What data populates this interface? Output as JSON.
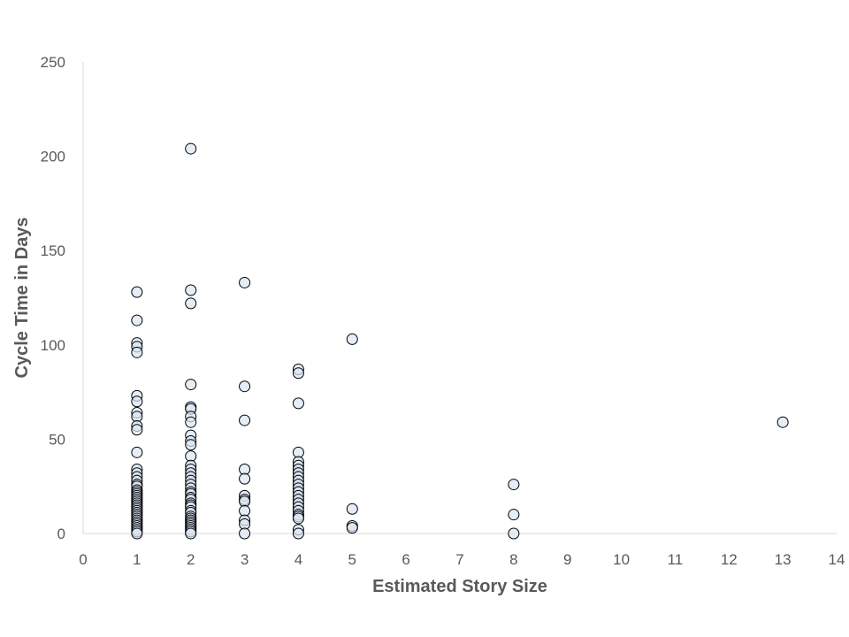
{
  "chart_data": {
    "type": "scatter",
    "title": "",
    "xlabel": "Estimated Story Size",
    "ylabel": "Cycle Time in Days",
    "xlim": [
      0,
      14
    ],
    "ylim": [
      0,
      250
    ],
    "xticks": [
      0,
      1,
      2,
      3,
      4,
      5,
      6,
      7,
      8,
      9,
      10,
      11,
      12,
      13,
      14
    ],
    "yticks": [
      0,
      50,
      100,
      150,
      200,
      250
    ],
    "grid": false,
    "legend": "none",
    "marker": {
      "fill": "#dae5f3",
      "stroke": "#000000"
    },
    "axis_color": "#d9d9d9",
    "text_color": "#595959",
    "series": [
      {
        "points": [
          [
            1,
            128
          ],
          [
            1,
            113
          ],
          [
            1,
            101
          ],
          [
            1,
            99
          ],
          [
            1,
            96
          ],
          [
            1,
            73
          ],
          [
            1,
            70
          ],
          [
            1,
            64
          ],
          [
            1,
            62
          ],
          [
            1,
            57
          ],
          [
            1,
            55
          ],
          [
            1,
            43
          ],
          [
            1,
            34
          ],
          [
            1,
            32
          ],
          [
            1,
            30
          ],
          [
            1,
            28
          ],
          [
            1,
            26
          ],
          [
            1,
            25
          ],
          [
            1,
            23
          ],
          [
            1,
            22
          ],
          [
            1,
            21
          ],
          [
            1,
            20
          ],
          [
            1,
            19
          ],
          [
            1,
            18
          ],
          [
            1,
            17
          ],
          [
            1,
            16
          ],
          [
            1,
            15
          ],
          [
            1,
            14
          ],
          [
            1,
            13
          ],
          [
            1,
            12
          ],
          [
            1,
            11
          ],
          [
            1,
            10
          ],
          [
            1,
            9
          ],
          [
            1,
            8
          ],
          [
            1,
            7
          ],
          [
            1,
            6
          ],
          [
            1,
            5
          ],
          [
            1,
            4
          ],
          [
            1,
            3
          ],
          [
            1,
            2
          ],
          [
            1,
            1
          ],
          [
            1,
            0
          ],
          [
            2,
            204
          ],
          [
            2,
            129
          ],
          [
            2,
            122
          ],
          [
            2,
            79
          ],
          [
            2,
            67
          ],
          [
            2,
            66
          ],
          [
            2,
            62
          ],
          [
            2,
            59
          ],
          [
            2,
            52
          ],
          [
            2,
            49
          ],
          [
            2,
            47
          ],
          [
            2,
            41
          ],
          [
            2,
            36
          ],
          [
            2,
            34
          ],
          [
            2,
            32
          ],
          [
            2,
            30
          ],
          [
            2,
            28
          ],
          [
            2,
            26
          ],
          [
            2,
            24
          ],
          [
            2,
            22
          ],
          [
            2,
            21
          ],
          [
            2,
            19
          ],
          [
            2,
            18
          ],
          [
            2,
            16
          ],
          [
            2,
            15
          ],
          [
            2,
            14
          ],
          [
            2,
            12
          ],
          [
            2,
            11
          ],
          [
            2,
            9
          ],
          [
            2,
            8
          ],
          [
            2,
            7
          ],
          [
            2,
            6
          ],
          [
            2,
            5
          ],
          [
            2,
            4
          ],
          [
            2,
            3
          ],
          [
            2,
            2
          ],
          [
            2,
            1
          ],
          [
            2,
            0
          ],
          [
            3,
            133
          ],
          [
            3,
            78
          ],
          [
            3,
            60
          ],
          [
            3,
            34
          ],
          [
            3,
            29
          ],
          [
            3,
            20
          ],
          [
            3,
            18
          ],
          [
            3,
            17
          ],
          [
            3,
            12
          ],
          [
            3,
            7
          ],
          [
            3,
            5
          ],
          [
            3,
            0
          ],
          [
            4,
            87
          ],
          [
            4,
            85
          ],
          [
            4,
            69
          ],
          [
            4,
            43
          ],
          [
            4,
            38
          ],
          [
            4,
            36
          ],
          [
            4,
            34
          ],
          [
            4,
            32
          ],
          [
            4,
            30
          ],
          [
            4,
            28
          ],
          [
            4,
            26
          ],
          [
            4,
            24
          ],
          [
            4,
            22
          ],
          [
            4,
            20
          ],
          [
            4,
            18
          ],
          [
            4,
            16
          ],
          [
            4,
            14
          ],
          [
            4,
            12
          ],
          [
            4,
            10
          ],
          [
            4,
            9
          ],
          [
            4,
            8
          ],
          [
            4,
            2
          ],
          [
            4,
            0
          ],
          [
            5,
            103
          ],
          [
            5,
            13
          ],
          [
            5,
            4
          ],
          [
            5,
            3
          ],
          [
            8,
            26
          ],
          [
            8,
            10
          ],
          [
            8,
            0
          ],
          [
            13,
            59
          ]
        ]
      }
    ]
  }
}
